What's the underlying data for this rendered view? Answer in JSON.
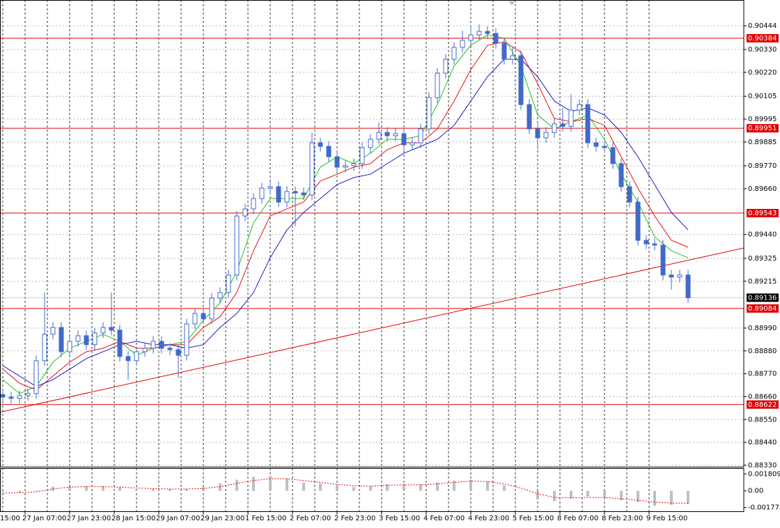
{
  "chart_data": {
    "type": "candlestick",
    "xlim": [
      7,
      274
    ],
    "xticks": [
      {
        "value": 0,
        "label": "15:00"
      },
      {
        "value": 16,
        "label": "27 Jan 07:00"
      },
      {
        "value": 32,
        "label": "27 Jan 23:00"
      },
      {
        "value": 48,
        "label": "28 Jan 15:00"
      },
      {
        "value": 64,
        "label": "29 Jan 07:00"
      },
      {
        "value": 80,
        "label": "29 Jan 23:00"
      },
      {
        "value": 96,
        "label": "1 Feb 15:00"
      },
      {
        "value": 112,
        "label": "2 Feb 07:00"
      },
      {
        "value": 128,
        "label": "2 Feb 23:00"
      },
      {
        "value": 144,
        "label": "3 Feb 15:00"
      },
      {
        "value": 160,
        "label": "4 Feb 07:00"
      },
      {
        "value": 176,
        "label": "4 Feb 23:00"
      },
      {
        "value": 192,
        "label": "5 Feb 15:00"
      },
      {
        "value": 208,
        "label": "8 Feb 07:00"
      },
      {
        "value": 224,
        "label": "8 Feb 23:00"
      },
      {
        "value": 240,
        "label": "9 Feb 15:00"
      }
    ],
    "ylim": [
      0.88323,
      0.90568
    ],
    "yticks": [
      0.90444,
      {
        "value": 0.9033,
        "label": "0.90330"
      },
      {
        "value": 0.9022,
        "label": "0.90220"
      },
      0.90105,
      0.89995,
      0.89885,
      {
        "value": 0.8977,
        "label": "0.89770"
      },
      {
        "value": 0.8966,
        "label": "0.89660"
      },
      {
        "value": 0.8944,
        "label": "0.89440"
      },
      0.89325,
      0.89215,
      {
        "value": 0.8899,
        "label": "0.88990"
      },
      {
        "value": 0.8888,
        "label": "0.88880"
      },
      {
        "value": 0.8877,
        "label": "0.88770"
      },
      {
        "value": 0.8866,
        "label": "0.88660"
      },
      {
        "value": 0.8855,
        "label": "0.88550"
      },
      {
        "value": 0.8844,
        "label": "0.88440"
      },
      {
        "value": 0.8833,
        "label": "0.88330"
      }
    ],
    "grid": true,
    "candles": {
      "color": "#4169c8",
      "x": [
        8,
        11,
        14,
        17,
        20,
        23,
        26,
        29,
        32,
        35,
        38,
        41,
        44,
        47,
        50,
        53,
        56,
        59,
        62,
        65,
        68,
        71,
        74,
        77,
        80,
        83,
        86,
        89,
        92,
        95,
        98,
        101,
        104,
        107,
        110,
        113,
        116,
        119,
        122,
        125,
        128,
        131,
        134,
        137,
        140,
        143,
        146,
        149,
        152,
        155,
        158,
        161,
        164,
        167,
        170,
        173,
        176,
        179,
        182,
        185,
        188,
        191,
        194,
        197,
        200,
        203,
        206,
        209,
        212,
        215,
        218,
        221,
        224,
        227,
        230,
        233,
        236,
        239,
        242,
        245,
        248,
        251,
        254
      ],
      "open": [
        0.8867,
        0.88658,
        0.88652,
        0.88665,
        0.88675,
        0.88833,
        0.8896,
        0.88993,
        0.88876,
        0.88926,
        0.88953,
        0.8891,
        0.88967,
        0.88993,
        0.8898,
        0.88853,
        0.88833,
        0.88876,
        0.88893,
        0.88926,
        0.88893,
        0.88886,
        0.88859,
        0.8901,
        0.8906,
        0.89034,
        0.89134,
        0.89161,
        0.89245,
        0.89529,
        0.89563,
        0.89613,
        0.89663,
        0.8967,
        0.89596,
        0.89647,
        0.8964,
        0.8963,
        0.89881,
        0.89864,
        0.89814,
        0.89764,
        0.89771,
        0.89781,
        0.89858,
        0.89898,
        0.89931,
        0.89915,
        0.89925,
        0.89871,
        0.89881,
        0.89948,
        0.90099,
        0.90216,
        0.90283,
        0.9034,
        0.90374,
        0.904,
        0.90417,
        0.90407,
        0.9036,
        0.90283,
        0.903,
        0.90065,
        0.89948,
        0.89905,
        0.89931,
        0.89972,
        0.8996,
        0.90039,
        0.90065,
        0.89881,
        0.89864,
        0.89858,
        0.89781,
        0.8967,
        0.89596,
        0.89412,
        0.89395,
        0.89389,
        0.89245,
        0.89235,
        0.89245
      ],
      "high": [
        0.88695,
        0.88683,
        0.8869,
        0.887,
        0.88858,
        0.89161,
        0.89018,
        0.89018,
        0.88951,
        0.88978,
        0.88978,
        0.88992,
        0.89018,
        0.89161,
        0.89005,
        0.88878,
        0.88901,
        0.88918,
        0.88951,
        0.88951,
        0.88918,
        0.88911,
        0.89035,
        0.89085,
        0.89085,
        0.89159,
        0.89186,
        0.8927,
        0.89554,
        0.89588,
        0.89638,
        0.89688,
        0.89695,
        0.89695,
        0.89672,
        0.89672,
        0.89665,
        0.8993,
        0.89906,
        0.89889,
        0.89839,
        0.89796,
        0.89806,
        0.89883,
        0.89923,
        0.8998,
        0.89956,
        0.8995,
        0.8995,
        0.89906,
        0.89973,
        0.90124,
        0.90241,
        0.90308,
        0.90365,
        0.9042,
        0.90444,
        0.9045,
        0.90442,
        0.90432,
        0.90385,
        0.9034,
        0.90325,
        0.9009,
        0.89973,
        0.89956,
        0.89997,
        0.9005,
        0.90115,
        0.9009,
        0.9009,
        0.89906,
        0.89889,
        0.89883,
        0.89806,
        0.89695,
        0.89621,
        0.89437,
        0.8942,
        0.89414,
        0.8927,
        0.8927,
        0.8927
      ],
      "low": [
        0.88633,
        0.88627,
        0.88627,
        0.8864,
        0.8865,
        0.88808,
        0.88935,
        0.88851,
        0.88851,
        0.88901,
        0.88885,
        0.88885,
        0.88942,
        0.88955,
        0.88828,
        0.8874,
        0.88808,
        0.88851,
        0.88868,
        0.88868,
        0.88861,
        0.8875,
        0.88834,
        0.88985,
        0.89009,
        0.89009,
        0.89109,
        0.89136,
        0.8922,
        0.89504,
        0.89538,
        0.89588,
        0.89638,
        0.89571,
        0.89571,
        0.8948,
        0.89605,
        0.89605,
        0.89839,
        0.89789,
        0.89739,
        0.89739,
        0.89746,
        0.89756,
        0.89833,
        0.89873,
        0.8989,
        0.8989,
        0.89846,
        0.89846,
        0.89856,
        0.89923,
        0.90074,
        0.90191,
        0.90258,
        0.90315,
        0.90349,
        0.90375,
        0.90382,
        0.90335,
        0.90258,
        0.90258,
        0.9004,
        0.89923,
        0.8985,
        0.8988,
        0.89906,
        0.89935,
        0.89935,
        0.90014,
        0.89856,
        0.89839,
        0.89833,
        0.89756,
        0.89645,
        0.89571,
        0.89387,
        0.8937,
        0.89364,
        0.8922,
        0.89175,
        0.8921,
        0.89111
      ],
      "close": [
        0.88658,
        0.88652,
        0.88665,
        0.88675,
        0.88833,
        0.8896,
        0.88993,
        0.88876,
        0.88926,
        0.88953,
        0.8891,
        0.88967,
        0.88993,
        0.8898,
        0.88853,
        0.88833,
        0.88876,
        0.88893,
        0.88926,
        0.88893,
        0.88886,
        0.88859,
        0.8901,
        0.8906,
        0.89034,
        0.89134,
        0.89161,
        0.89245,
        0.89529,
        0.89563,
        0.89613,
        0.89663,
        0.8967,
        0.89596,
        0.89647,
        0.8964,
        0.8963,
        0.89881,
        0.89864,
        0.89814,
        0.89764,
        0.89771,
        0.89781,
        0.89858,
        0.89898,
        0.89931,
        0.89915,
        0.89925,
        0.89871,
        0.89881,
        0.89948,
        0.90099,
        0.90216,
        0.90283,
        0.9034,
        0.90374,
        0.904,
        0.90417,
        0.90407,
        0.9036,
        0.90283,
        0.903,
        0.90065,
        0.89948,
        0.89905,
        0.89931,
        0.89972,
        0.8996,
        0.90039,
        0.90065,
        0.89881,
        0.89864,
        0.89858,
        0.89781,
        0.8967,
        0.89596,
        0.89412,
        0.89395,
        0.89389,
        0.89245,
        0.89235,
        0.89245,
        0.89136
      ]
    },
    "series": [
      {
        "color": "#1fc01f",
        "x": [
          8,
          14,
          20,
          26,
          32,
          38,
          44,
          50,
          56,
          62,
          68,
          74,
          80,
          86,
          92,
          98,
          104,
          110,
          116,
          122,
          128,
          134,
          140,
          146,
          152,
          158,
          164,
          170,
          176,
          182,
          188,
          194,
          200,
          206,
          212,
          218,
          224,
          230,
          236,
          242,
          248,
          254
        ],
        "values": [
          0.88742,
          0.88675,
          0.88709,
          0.88826,
          0.88893,
          0.88926,
          0.8896,
          0.88926,
          0.88859,
          0.88893,
          0.8891,
          0.88926,
          0.89027,
          0.89111,
          0.89261,
          0.89496,
          0.89613,
          0.89613,
          0.89613,
          0.89764,
          0.89814,
          0.89781,
          0.89831,
          0.89898,
          0.89898,
          0.89915,
          0.90065,
          0.9025,
          0.9035,
          0.904,
          0.90384,
          0.9025,
          0.90015,
          0.89948,
          0.89982,
          0.90015,
          0.89898,
          0.8973,
          0.89596,
          0.89429,
          0.89362,
          0.89328
        ]
      },
      {
        "color": "#e01010",
        "x": [
          8,
          14,
          20,
          26,
          32,
          38,
          44,
          50,
          56,
          62,
          68,
          74,
          80,
          86,
          92,
          98,
          104,
          110,
          116,
          122,
          128,
          134,
          140,
          146,
          152,
          158,
          164,
          170,
          176,
          182,
          188,
          194,
          200,
          206,
          212,
          218,
          224,
          230,
          236,
          242,
          248,
          254
        ],
        "values": [
          0.88792,
          0.88725,
          0.88692,
          0.88759,
          0.88826,
          0.88876,
          0.88893,
          0.88926,
          0.88893,
          0.88893,
          0.8891,
          0.8891,
          0.88993,
          0.89044,
          0.89161,
          0.89362,
          0.89529,
          0.89563,
          0.89596,
          0.89697,
          0.8973,
          0.89764,
          0.89781,
          0.89848,
          0.89881,
          0.89881,
          0.89948,
          0.90082,
          0.90233,
          0.9035,
          0.90367,
          0.90317,
          0.90166,
          0.89998,
          0.89982,
          0.89998,
          0.89965,
          0.89814,
          0.89663,
          0.89529,
          0.89412,
          0.89379
        ]
      },
      {
        "color": "#1818c8",
        "x": [
          8,
          14,
          20,
          26,
          32,
          38,
          44,
          50,
          56,
          62,
          68,
          74,
          80,
          86,
          92,
          98,
          104,
          110,
          116,
          122,
          128,
          134,
          140,
          146,
          152,
          158,
          164,
          170,
          176,
          182,
          188,
          194,
          200,
          206,
          212,
          218,
          224,
          230,
          236,
          242,
          248,
          254
        ],
        "values": [
          0.88809,
          0.88759,
          0.88709,
          0.88742,
          0.88792,
          0.88843,
          0.88876,
          0.8891,
          0.88926,
          0.8891,
          0.8891,
          0.88893,
          0.8891,
          0.88993,
          0.8906,
          0.89161,
          0.89328,
          0.89462,
          0.89546,
          0.89613,
          0.8968,
          0.89714,
          0.8973,
          0.89781,
          0.89831,
          0.89864,
          0.89898,
          0.89965,
          0.90082,
          0.90199,
          0.90283,
          0.90283,
          0.90199,
          0.90082,
          0.90032,
          0.90049,
          0.90015,
          0.89931,
          0.89814,
          0.8968,
          0.89546,
          0.89462
        ]
      }
    ],
    "levels": [
      {
        "value": 0.90384,
        "color": "#e00000"
      },
      {
        "value": 0.89951,
        "color": "#e00000"
      },
      {
        "value": 0.89543,
        "color": "#e00000"
      },
      {
        "value": 0.89084,
        "color": "#e00000"
      },
      {
        "value": 0.88622,
        "color": "#e00000"
      }
    ],
    "current_price": {
      "value": 0.89136,
      "color": "#000000"
    },
    "trendline": {
      "color": "#e00000",
      "x": [
        7,
        274
      ],
      "values": [
        0.88585,
        0.89375
      ]
    },
    "oscillator": {
      "type": "histogram",
      "color": "#c0c0c0",
      "ylim": [
        -0.00225,
        0.00243
      ],
      "yticks": [
        0.001809,
        {
          "value": 0,
          "label": "0.00"
        },
        -0.001778
      ],
      "x": [
        8,
        14,
        20,
        26,
        32,
        38,
        44,
        50,
        56,
        62,
        68,
        74,
        80,
        86,
        92,
        98,
        104,
        110,
        116,
        122,
        128,
        134,
        140,
        146,
        152,
        158,
        164,
        170,
        176,
        182,
        188,
        194,
        200,
        206,
        212,
        218,
        224,
        230,
        236,
        242,
        248,
        254
      ],
      "values": [
        -0.0001,
        -0.00015,
        5e-05,
        0.00045,
        0.0005,
        0.0005,
        0.0005,
        0.00035,
        0.00015,
        0.0002,
        0.0002,
        0.0002,
        0.0004,
        0.0008,
        0.0012,
        0.0015,
        0.0016,
        0.0013,
        0.0009,
        0.0008,
        0.0006,
        0.0004,
        0.0005,
        0.0007,
        0.00075,
        0.0007,
        0.0009,
        0.0011,
        0.0012,
        0.001,
        0.0006,
        0,
        -0.0009,
        -0.0011,
        -0.0008,
        -0.0006,
        -0.0007,
        -0.001,
        -0.0012,
        -0.0016,
        -0.0015,
        -0.0014
      ],
      "signal": {
        "color": "#e00000",
        "values": [
          -0.00025,
          -0.0002,
          -0.0001,
          0.0002,
          0.0004,
          0.00045,
          0.00045,
          0.0004,
          0.0003,
          0.00025,
          0.0002,
          0.0002,
          0.00025,
          0.00045,
          0.0008,
          0.0011,
          0.0013,
          0.0013,
          0.0011,
          0.0009,
          0.0007,
          0.00055,
          0.0005,
          0.0006,
          0.00065,
          0.00065,
          0.00075,
          0.0009,
          0.00105,
          0.001,
          0.00075,
          0.0003,
          -0.0003,
          -0.0007,
          -0.00075,
          -0.0007,
          -0.0007,
          -0.00085,
          -0.001,
          -0.0012,
          -0.0013,
          -0.0013
        ]
      }
    }
  }
}
